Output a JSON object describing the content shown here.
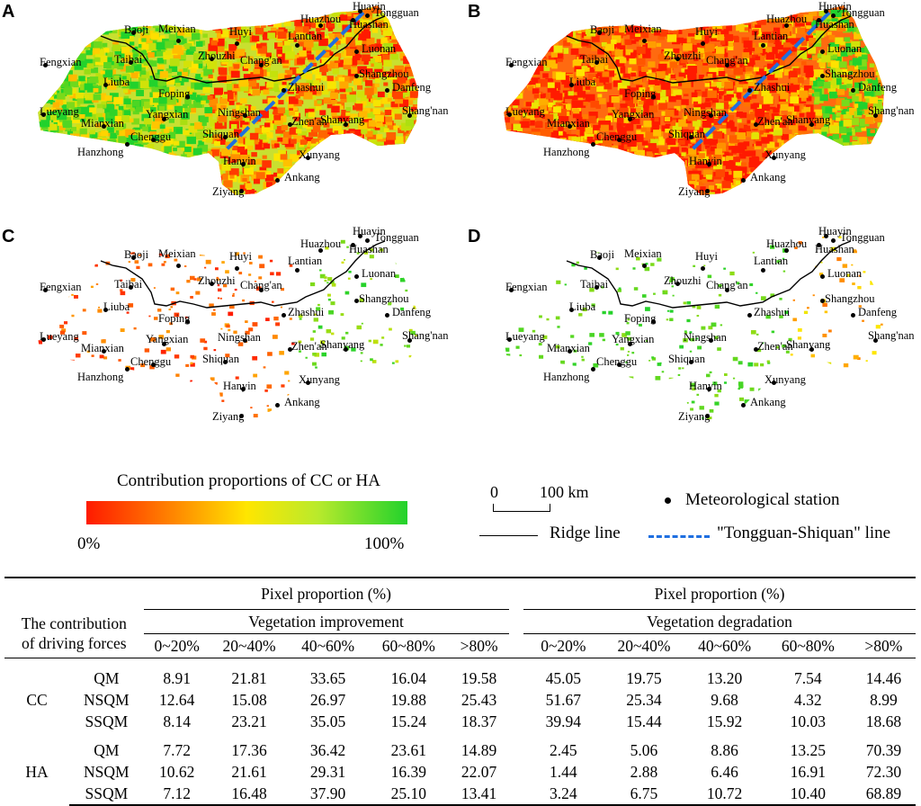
{
  "panels": [
    {
      "letter": "A",
      "style": "full"
    },
    {
      "letter": "B",
      "style": "full-red"
    },
    {
      "letter": "C",
      "style": "sparse-cc"
    },
    {
      "letter": "D",
      "style": "sparse-ha"
    }
  ],
  "stations": [
    "Baoji",
    "Meixian",
    "Huyi",
    "Lantian",
    "Huazhou",
    "Huayin",
    "Tongguan",
    "Huashan",
    "Fengxian",
    "Taibai",
    "Zhouzhi",
    "Chang'an",
    "Luonan",
    "Shangzhou",
    "Liuba",
    "Foping",
    "Zhashui",
    "Danfeng",
    "Shang'nan",
    "Lueyang",
    "Mianxian",
    "Yangxian",
    "Ningshan",
    "Zhen'an",
    "Shanyang",
    "Chenggu",
    "Shiquan",
    "Hanzhong",
    "Hanyin",
    "Xunyang",
    "Ankang",
    "Ziyang"
  ],
  "legend": {
    "colorbar_title": "Contribution proportions of CC or HA",
    "colorbar_min": "0%",
    "colorbar_max": "100%",
    "scale_zero": "0",
    "scale_label": "100 km",
    "station_label": "Meteorological station",
    "ridge_label": "Ridge line",
    "ts_label": "\"Tongguan-Shiquan\" line",
    "colors": {
      "low": "#ff1a00",
      "mid": "#ffe600",
      "high": "#22d22c",
      "ts_line": "#1f6fe0"
    }
  },
  "table": {
    "stub_header_1": "The contribution",
    "stub_header_2": "of driving forces",
    "group_header": "Pixel proportion (%)",
    "improvement": "Vegetation improvement",
    "degradation": "Vegetation degradation",
    "bins": [
      "0~20%",
      "20~40%",
      "40~60%",
      "60~80%",
      ">80%"
    ],
    "rows": [
      {
        "force": "CC",
        "region": "QM",
        "imp": [
          "8.91",
          "21.81",
          "33.65",
          "16.04",
          "19.58"
        ],
        "deg": [
          "45.05",
          "19.75",
          "13.20",
          "7.54",
          "14.46"
        ]
      },
      {
        "force": "",
        "region": "NSQM",
        "imp": [
          "12.64",
          "15.08",
          "26.97",
          "19.88",
          "25.43"
        ],
        "deg": [
          "51.67",
          "25.34",
          "9.68",
          "4.32",
          "8.99"
        ]
      },
      {
        "force": "",
        "region": "SSQM",
        "imp": [
          "8.14",
          "23.21",
          "35.05",
          "15.24",
          "18.37"
        ],
        "deg": [
          "39.94",
          "15.44",
          "15.92",
          "10.03",
          "18.68"
        ]
      },
      {
        "force": "HA",
        "region": "QM",
        "imp": [
          "7.72",
          "17.36",
          "36.42",
          "23.61",
          "14.89"
        ],
        "deg": [
          "2.45",
          "5.06",
          "8.86",
          "13.25",
          "70.39"
        ]
      },
      {
        "force": "",
        "region": "NSQM",
        "imp": [
          "10.62",
          "21.61",
          "29.31",
          "16.39",
          "22.07"
        ],
        "deg": [
          "1.44",
          "2.88",
          "6.46",
          "16.91",
          "72.30"
        ]
      },
      {
        "force": "",
        "region": "SSQM",
        "imp": [
          "7.12",
          "16.48",
          "37.90",
          "25.10",
          "13.41"
        ],
        "deg": [
          "3.24",
          "6.75",
          "10.72",
          "10.40",
          "68.89"
        ]
      }
    ]
  }
}
